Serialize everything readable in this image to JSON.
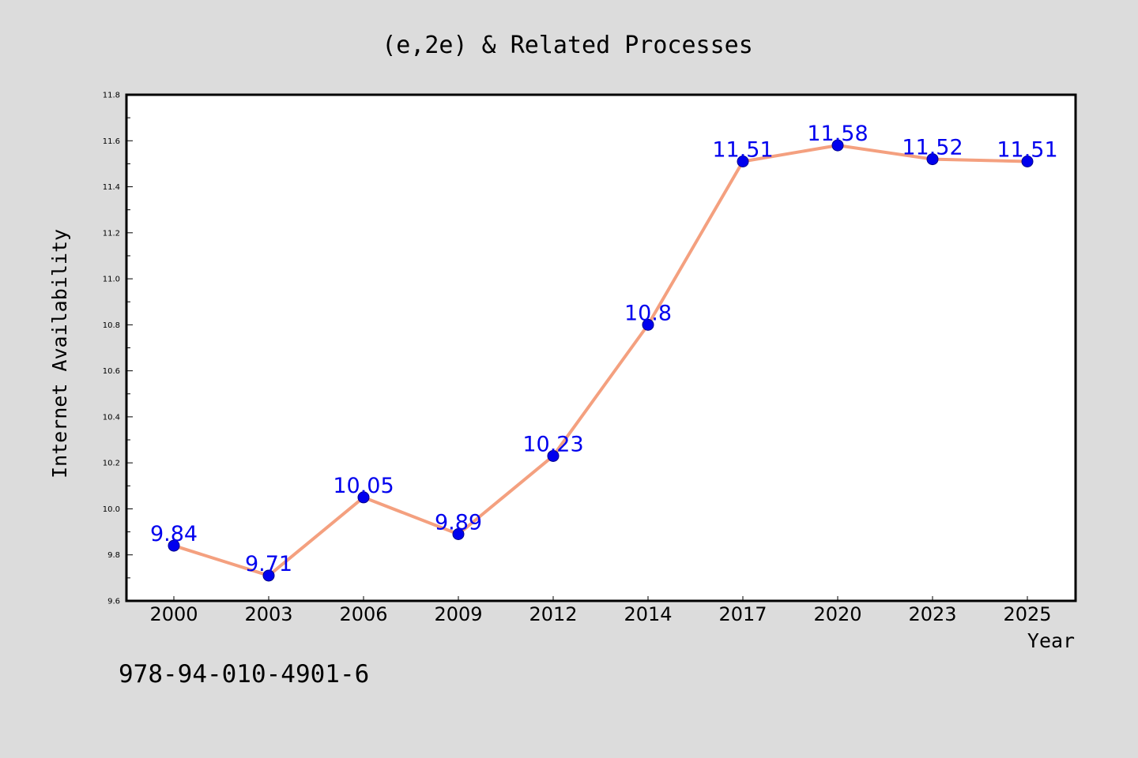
{
  "chart_data": {
    "type": "line",
    "title": "(e,2e) & Related Processes",
    "xlabel": "Year",
    "ylabel": "Internet Availability",
    "categories": [
      "2000",
      "2003",
      "2006",
      "2009",
      "2012",
      "2014",
      "2017",
      "2020",
      "2023",
      "2025"
    ],
    "series": [
      {
        "values": [
          9.84,
          9.71,
          10.05,
          9.89,
          10.23,
          10.8,
          11.51,
          11.58,
          11.52,
          11.51
        ],
        "data_labels": [
          "9.84",
          "9.71",
          "10.05",
          "9.89",
          "10.23",
          "10.8",
          "11.51",
          "11.58",
          "11.52",
          "11.51"
        ],
        "line_color": "#f4a07f",
        "marker_color": "#0000ee"
      }
    ],
    "ylim": [
      9.6,
      11.8
    ],
    "yticks": [
      "9.6",
      "9.8",
      "10.0",
      "10.2",
      "10.4",
      "10.6",
      "10.8",
      "11.0",
      "11.2",
      "11.4",
      "11.6",
      "11.8"
    ],
    "grid": false,
    "legend": false
  },
  "footer": {
    "isbn": "978-94-010-4901-6"
  },
  "colors": {
    "background": "#dcdcdc",
    "plot_area": "#ffffff",
    "data_label": "#0000ee"
  }
}
